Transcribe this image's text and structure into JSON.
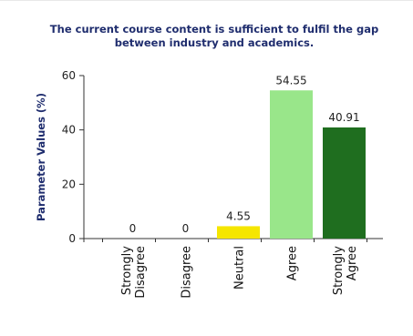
{
  "chart_data": {
    "type": "bar",
    "title_lines": [
      "The current course content is sufficient to fulfil the gap",
      "between industry and academics."
    ],
    "ylabel": "Parameter Values (%)",
    "xlabel": "",
    "categories": [
      [
        "Strongly",
        "Disagree"
      ],
      [
        "Disagree"
      ],
      [
        "Neutral"
      ],
      [
        "Agree"
      ],
      [
        "Strongly",
        "Agree"
      ]
    ],
    "values": [
      0,
      0,
      4.55,
      54.55,
      40.91
    ],
    "value_labels": [
      "0",
      "0",
      "4.55",
      "54.55",
      "40.91"
    ],
    "bar_colors": [
      "#cccccc",
      "#cccccc",
      "#f5e600",
      "#99e68a",
      "#1f6e1f"
    ],
    "ylim": [
      0,
      60
    ],
    "yticks": [
      0,
      20,
      40,
      60
    ],
    "grid": false,
    "legend": "none"
  }
}
